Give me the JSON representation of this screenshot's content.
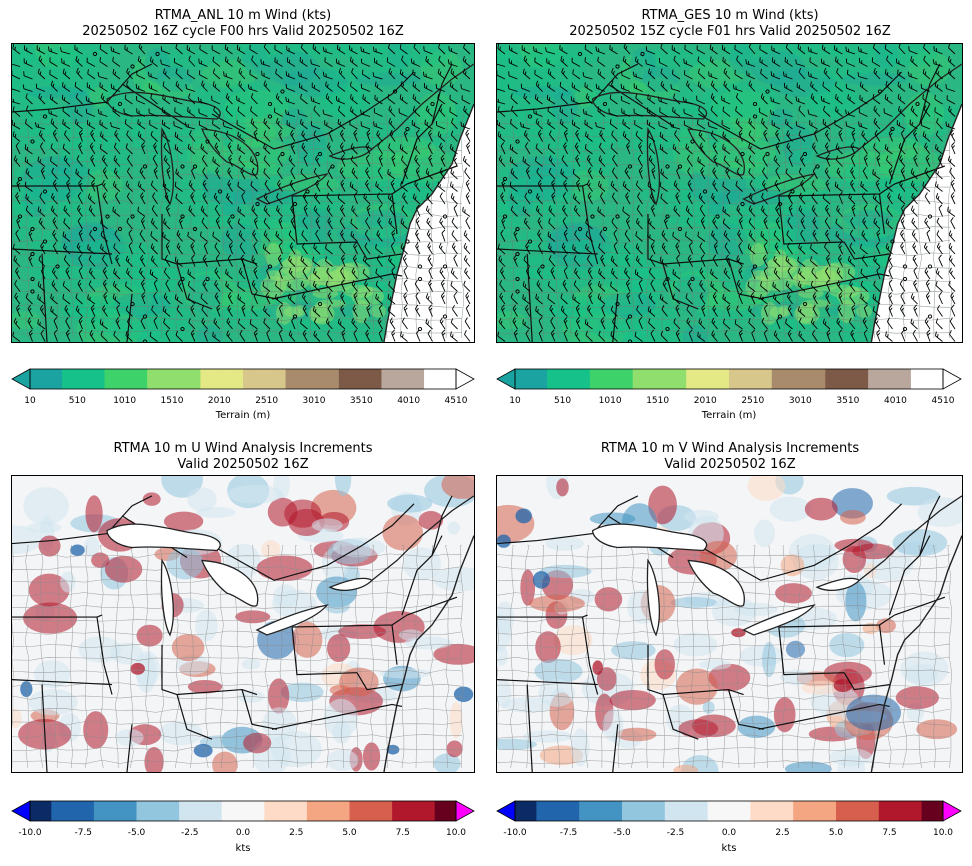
{
  "panels": [
    {
      "id": "anl",
      "line1": "RTMA_ANL 10 m Wind (kts)",
      "line2": "20250502 16Z cycle F00 hrs Valid 20250502 16Z"
    },
    {
      "id": "ges",
      "line1": "RTMA_GES 10 m Wind (kts)",
      "line2": "20250502 15Z cycle F01 hrs Valid 20250502 16Z"
    },
    {
      "id": "uinc",
      "line1": "RTMA 10 m U Wind Analysis Increments",
      "line2": "Valid 20250502 16Z"
    },
    {
      "id": "vinc",
      "line1": "RTMA 10 m V Wind Analysis Increments",
      "line2": "Valid 20250502 16Z"
    }
  ],
  "terrain_colorbar": {
    "label": "Terrain (m)",
    "ticks": [
      "10",
      "510",
      "1010",
      "1510",
      "2010",
      "2510",
      "3010",
      "3510",
      "4010",
      "4510"
    ],
    "colors": [
      "#1aa3a0",
      "#17c28a",
      "#3ed26b",
      "#8fde6e",
      "#e4e885",
      "#d7c78a",
      "#a88b6d",
      "#7c5a47",
      "#b9a69c",
      "#ffffff"
    ]
  },
  "increment_colorbar": {
    "label": "kts",
    "ticks": [
      "-10.0",
      "-7.5",
      "-5.0",
      "-2.5",
      "0.0",
      "2.5",
      "5.0",
      "7.5",
      "10.0"
    ],
    "colors": [
      "#0b2a66",
      "#2166ac",
      "#4393c3",
      "#92c5de",
      "#d1e5f0",
      "#f7f7f7",
      "#fddbc7",
      "#f4a582",
      "#d6604d",
      "#b2182b",
      "#67001f"
    ],
    "under_color": "#0000ff",
    "over_color": "#ff00ff"
  }
}
